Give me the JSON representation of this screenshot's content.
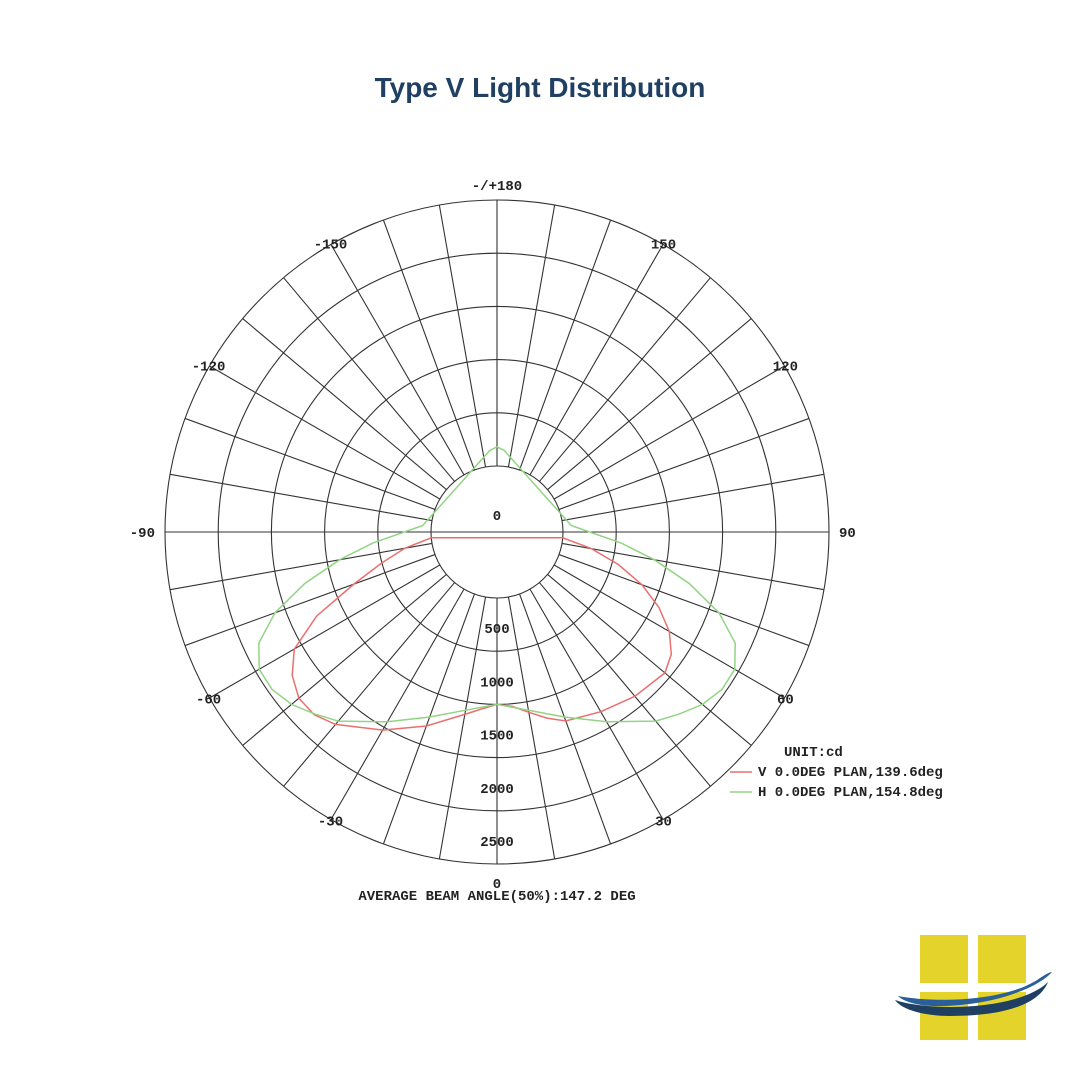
{
  "title": "Type V Light Distribution",
  "chart_data": {
    "type": "polar",
    "title": "Type V Light Distribution",
    "angle_labels": [
      {
        "angle": 180,
        "text": "-/+180"
      },
      {
        "angle": -150,
        "text": "-150"
      },
      {
        "angle": 150,
        "text": "150"
      },
      {
        "angle": -120,
        "text": "-120"
      },
      {
        "angle": 120,
        "text": "120"
      },
      {
        "angle": -90,
        "text": "-90"
      },
      {
        "angle": 90,
        "text": "90"
      },
      {
        "angle": -60,
        "text": "-60"
      },
      {
        "angle": 60,
        "text": "60"
      },
      {
        "angle": -30,
        "text": "-30"
      },
      {
        "angle": 30,
        "text": "30"
      },
      {
        "angle": 0,
        "text": "0"
      }
    ],
    "radial_ticks": [
      0,
      500,
      1000,
      1500,
      2000,
      2500
    ],
    "radial_range": [
      0,
      2500
    ],
    "unit": "UNIT:cd",
    "footer": "AVERAGE BEAM ANGLE(50%):147.2 DEG",
    "legend_position": "bottom-right",
    "series": [
      {
        "name": "V 0.0DEG PLAN,139.6deg",
        "color": "#e8706e",
        "points": [
          [
            0,
            1000
          ],
          [
            5,
            1025
          ],
          [
            10,
            1100
          ],
          [
            15,
            1190
          ],
          [
            20,
            1270
          ],
          [
            30,
            1330
          ],
          [
            40,
            1395
          ],
          [
            50,
            1440
          ],
          [
            55,
            1380
          ],
          [
            60,
            1250
          ],
          [
            65,
            1060
          ],
          [
            70,
            830
          ],
          [
            75,
            560
          ],
          [
            80,
            280
          ],
          [
            85,
            0
          ],
          [
            85,
            0
          ],
          [
            -85,
            0
          ],
          [
            -80,
            260
          ],
          [
            -75,
            500
          ],
          [
            -70,
            810
          ],
          [
            -65,
            1250
          ],
          [
            -60,
            1580
          ],
          [
            -55,
            1730
          ],
          [
            -50,
            1810
          ],
          [
            -45,
            1810
          ],
          [
            -40,
            1740
          ],
          [
            -30,
            1530
          ],
          [
            -20,
            1320
          ],
          [
            -10,
            1120
          ],
          [
            -5,
            1050
          ],
          [
            0,
            1000
          ]
        ]
      },
      {
        "name": "H 0.0DEG PLAN,154.8deg",
        "color": "#92d484",
        "points": [
          [
            0,
            1000
          ],
          [
            10,
            1080
          ],
          [
            20,
            1230
          ],
          [
            30,
            1440
          ],
          [
            40,
            1700
          ],
          [
            45,
            1800
          ],
          [
            50,
            1900
          ],
          [
            55,
            1960
          ],
          [
            60,
            1960
          ],
          [
            65,
            1850
          ],
          [
            70,
            1600
          ],
          [
            75,
            1250
          ],
          [
            80,
            880
          ],
          [
            85,
            550
          ],
          [
            90,
            250
          ],
          [
            95,
            80
          ],
          [
            100,
            40
          ],
          [
            175,
            150
          ],
          [
            180,
            180
          ],
          [
            -175,
            150
          ],
          [
            -100,
            40
          ],
          [
            -95,
            80
          ],
          [
            -90,
            250
          ],
          [
            -85,
            550
          ],
          [
            -80,
            880
          ],
          [
            -75,
            1250
          ],
          [
            -70,
            1600
          ],
          [
            -65,
            1850
          ],
          [
            -60,
            1960
          ],
          [
            -55,
            1960
          ],
          [
            -50,
            1900
          ],
          [
            -45,
            1800
          ],
          [
            -40,
            1700
          ],
          [
            -30,
            1440
          ],
          [
            -20,
            1230
          ],
          [
            -10,
            1080
          ],
          [
            0,
            1000
          ]
        ]
      }
    ]
  }
}
